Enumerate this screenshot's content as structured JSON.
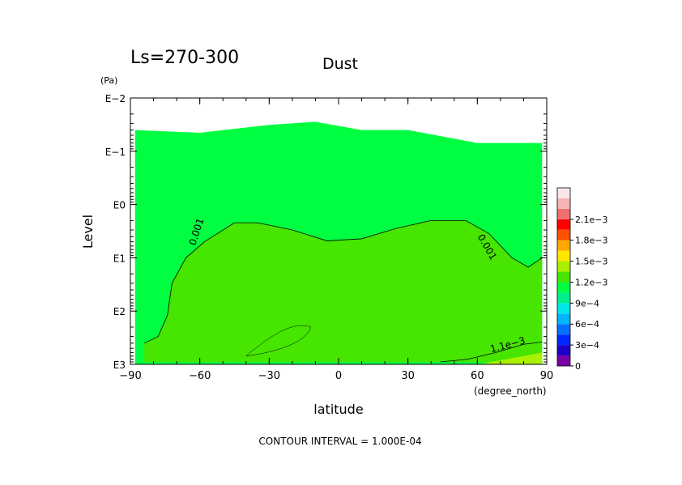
{
  "chart_data": {
    "type": "heatmap",
    "panel_label": "Ls=270-300",
    "title": "Dust",
    "xlabel": "latitude",
    "x_unit": "(degree_north)",
    "ylabel": "Level",
    "y_unit": "(Pa)",
    "footer": "CONTOUR INTERVAL = 1.000E-04",
    "xlim": [
      -90,
      90
    ],
    "x_ticks": [
      -90,
      -60,
      -30,
      0,
      30,
      60,
      90
    ],
    "x_tick_labels": [
      "−90",
      "−60",
      "−30",
      "0",
      "30",
      "60",
      "90"
    ],
    "y_scale": "log",
    "ylim": [
      1000,
      0.01
    ],
    "y_ticks": [
      0.01,
      0.1,
      1,
      10,
      100,
      1000
    ],
    "y_tick_labels": [
      "E−2",
      "E−1",
      "E0",
      "E1",
      "E2",
      "E3"
    ],
    "colorbar": {
      "levels": [
        0,
        0.00015,
        0.0003,
        0.00045,
        0.0006,
        0.00075,
        0.0009,
        0.00105,
        0.0012,
        0.00135,
        0.0015,
        0.00165,
        0.0018,
        0.00195,
        0.0021,
        0.00225
      ],
      "colors": [
        "#7a00a8",
        "#1a00c8",
        "#0028ff",
        "#0070ff",
        "#00b4ff",
        "#00e6e6",
        "#00f08c",
        "#00ff41",
        "#46e600",
        "#aaf000",
        "#ffe600",
        "#ffaa00",
        "#ff5000",
        "#ff0000",
        "#f07070",
        "#f5b4b4",
        "#fae6e6"
      ],
      "labeled": [
        {
          "value": 0,
          "label": "0"
        },
        {
          "value": 0.0003,
          "label": "3e−4"
        },
        {
          "value": 0.0006,
          "label": "6e−4"
        },
        {
          "value": 0.0009,
          "label": "9e−4"
        },
        {
          "value": 0.0012,
          "label": "1.2e−3"
        },
        {
          "value": 0.0015,
          "label": "1.5e−3"
        },
        {
          "value": 0.0018,
          "label": "1.8e−3"
        },
        {
          "value": 0.0021,
          "label": "2.1e−3"
        }
      ]
    },
    "field": {
      "background_level": "9e-4 to 1.05e-3",
      "model_top_pa": [
        {
          "lat": -88,
          "p": 0.04
        },
        {
          "lat": -60,
          "p": 0.045
        },
        {
          "lat": -30,
          "p": 0.032
        },
        {
          "lat": -10,
          "p": 0.028
        },
        {
          "lat": 10,
          "p": 0.04
        },
        {
          "lat": 30,
          "p": 0.04
        },
        {
          "lat": 60,
          "p": 0.07
        },
        {
          "lat": 88,
          "p": 0.07
        }
      ]
    },
    "contours": [
      {
        "value": 0.001,
        "label": "0.001",
        "path": [
          [
            -84,
            400
          ],
          [
            -78,
            300
          ],
          [
            -74,
            120
          ],
          [
            -72,
            30
          ],
          [
            -66,
            10
          ],
          [
            -58,
            5
          ],
          [
            -45,
            2.2
          ],
          [
            -35,
            2.2
          ],
          [
            -20,
            3
          ],
          [
            -5,
            4.8
          ],
          [
            10,
            4.4
          ],
          [
            25,
            2.8
          ],
          [
            40,
            2
          ],
          [
            55,
            2
          ],
          [
            65,
            3.5
          ],
          [
            75,
            10
          ],
          [
            82,
            15
          ],
          [
            88,
            10
          ]
        ]
      },
      {
        "value": 0.0011,
        "label": "1.1e−3",
        "path": [
          [
            44,
            900
          ],
          [
            56,
            800
          ],
          [
            68,
            600
          ],
          [
            80,
            420
          ],
          [
            88,
            380
          ]
        ]
      }
    ]
  }
}
